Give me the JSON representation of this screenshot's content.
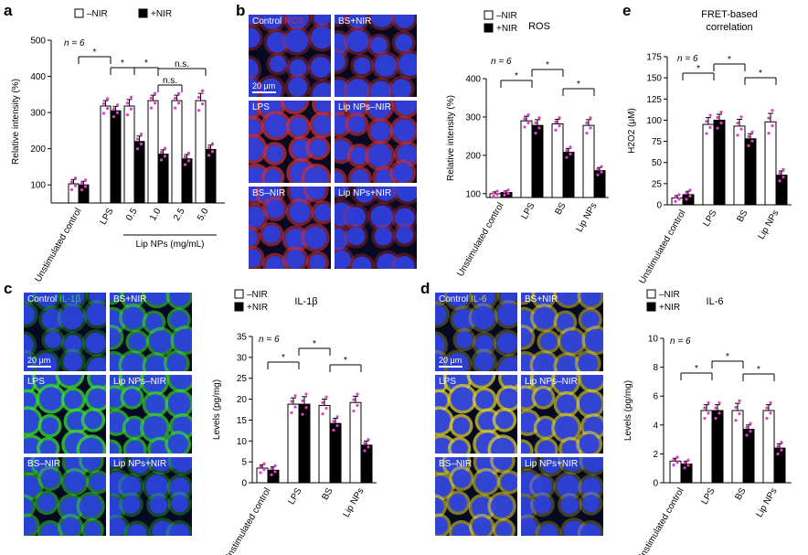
{
  "panel_letters": {
    "a": "a",
    "b": "b",
    "c": "c",
    "d": "d",
    "e": "e"
  },
  "colors": {
    "open": "#ffffff",
    "filled": "#000000",
    "dots": "#e040c8",
    "dapi": "#2a3fe0",
    "ros": "#c8303a",
    "il1b": "#3ad43a",
    "il6": "#d8cc3a"
  },
  "micro_b": {
    "tiles": [
      {
        "label": "Control",
        "stain": "ROS"
      },
      {
        "label": "BS+NIR",
        "stain": ""
      },
      {
        "label": "LPS",
        "stain": ""
      },
      {
        "label": "Lip NPs–NIR",
        "stain": ""
      },
      {
        "label": "BS–NIR",
        "stain": ""
      },
      {
        "label": "Lip NPs+NIR",
        "stain": ""
      }
    ],
    "scale": "20 μm"
  },
  "micro_c": {
    "tiles": [
      {
        "label": "Control",
        "stain": "IL-1β"
      },
      {
        "label": "BS+NIR",
        "stain": ""
      },
      {
        "label": "LPS",
        "stain": ""
      },
      {
        "label": "Lip NPs–NIR",
        "stain": ""
      },
      {
        "label": "BS–NIR",
        "stain": ""
      },
      {
        "label": "Lip NPs+NIR",
        "stain": ""
      }
    ],
    "scale": "20 μm"
  },
  "micro_d": {
    "tiles": [
      {
        "label": "Control",
        "stain": "IL-6"
      },
      {
        "label": "BS+NIR",
        "stain": ""
      },
      {
        "label": "LPS",
        "stain": ""
      },
      {
        "label": "Lip NPs–NIR",
        "stain": ""
      },
      {
        "label": "BS–NIR",
        "stain": ""
      },
      {
        "label": "Lip NPs+NIR",
        "stain": ""
      }
    ],
    "scale": "20 μm"
  },
  "chart_data": [
    {
      "panel": "a",
      "type": "bar",
      "title": "",
      "ylabel": "Relative intensity (%)",
      "xlabel": "Lip NPs (mg/mL)",
      "categories": [
        "Unstimulated control",
        "LPS",
        "0.5",
        "1.0",
        "2.5",
        "5.0"
      ],
      "ylim": [
        50,
        500
      ],
      "yticks": [
        100,
        200,
        300,
        400,
        500
      ],
      "ytick_labels": [
        "100",
        "200",
        "300",
        "400",
        "500"
      ],
      "series": [
        {
          "name": "–NIR",
          "values": [
            103,
            318,
            318,
            333,
            333,
            333
          ],
          "errors": [
            12,
            15,
            18,
            15,
            15,
            20
          ]
        },
        {
          "name": "+NIR",
          "values": [
            100,
            305,
            220,
            185,
            172,
            198
          ],
          "errors": [
            10,
            12,
            15,
            12,
            12,
            12
          ]
        }
      ],
      "n_label": "n = 6",
      "significance": [
        "*",
        "*",
        "*",
        "n.s.",
        "n.s."
      ]
    },
    {
      "panel": "b",
      "type": "bar",
      "title": "ROS",
      "ylabel": "Relative intensity (%)",
      "xlabel": "",
      "categories": [
        "Unstimulated control",
        "LPS",
        "BS",
        "Lip NPs"
      ],
      "ylim": [
        90,
        400
      ],
      "yticks": [
        100,
        200,
        300,
        400
      ],
      "ytick_labels": [
        "100",
        "200",
        "300",
        "400"
      ],
      "series": [
        {
          "name": "–NIR",
          "values": [
            100,
            290,
            282,
            278
          ],
          "errors": [
            5,
            12,
            12,
            15
          ]
        },
        {
          "name": "+NIR",
          "values": [
            103,
            278,
            208,
            160
          ],
          "errors": [
            5,
            15,
            10,
            8
          ]
        }
      ],
      "n_label": "n = 6",
      "significance": [
        "*",
        "*",
        "*"
      ]
    },
    {
      "panel": "e",
      "type": "bar",
      "title": "FRET-based correlation",
      "ylabel": "H2O2 (μM)",
      "xlabel": "",
      "categories": [
        "Unstimulated control",
        "LPS",
        "BS",
        "Lip NPs"
      ],
      "ylim": [
        0,
        175
      ],
      "yticks": [
        0,
        25,
        50,
        75,
        100,
        125,
        150,
        175
      ],
      "ytick_labels": [
        "0",
        "25",
        "50",
        "75",
        "100",
        "125",
        "150",
        "175"
      ],
      "series": [
        {
          "name": "–NIR",
          "values": [
            8,
            95,
            93,
            98
          ],
          "errors": [
            3,
            8,
            8,
            10
          ]
        },
        {
          "name": "+NIR",
          "values": [
            12,
            100,
            78,
            35
          ],
          "errors": [
            4,
            7,
            6,
            5
          ]
        }
      ],
      "n_label": "n = 6",
      "significance": [
        "*",
        "*",
        "*"
      ]
    },
    {
      "panel": "c",
      "type": "bar",
      "title": "IL-1β",
      "ylabel": "Levels (pg/mg)",
      "xlabel": "",
      "categories": [
        "Unstimulated control",
        "LPS",
        "BS",
        "Lip NPs"
      ],
      "ylim": [
        0,
        35
      ],
      "yticks": [
        0,
        5,
        10,
        15,
        20,
        25,
        30,
        35
      ],
      "ytick_labels": [
        "0",
        "5",
        "10",
        "15",
        "20",
        "25",
        "30",
        "35"
      ],
      "series": [
        {
          "name": "–NIR",
          "values": [
            3.5,
            18.8,
            18.5,
            19.2
          ],
          "errors": [
            0.8,
            1.5,
            1.5,
            1.5
          ]
        },
        {
          "name": "+NIR",
          "values": [
            3.0,
            18.8,
            14.2,
            9.0
          ],
          "errors": [
            0.8,
            1.8,
            1.2,
            1.0
          ]
        }
      ],
      "n_label": "n = 6",
      "significance": [
        "*",
        "*",
        "*"
      ]
    },
    {
      "panel": "d",
      "type": "bar",
      "title": "IL-6",
      "ylabel": "Levels (pg/mg)",
      "xlabel": "",
      "categories": [
        "Unstimulated control",
        "LPS",
        "BS",
        "Lip NPs"
      ],
      "ylim": [
        0,
        10
      ],
      "yticks": [
        0,
        2,
        4,
        6,
        8,
        10
      ],
      "ytick_labels": [
        "0",
        "2",
        "4",
        "6",
        "8",
        "10"
      ],
      "series": [
        {
          "name": "–NIR",
          "values": [
            1.5,
            5.0,
            5.0,
            5.0
          ],
          "errors": [
            0.2,
            0.4,
            0.5,
            0.4
          ]
        },
        {
          "name": "+NIR",
          "values": [
            1.3,
            5.0,
            3.7,
            2.4
          ],
          "errors": [
            0.2,
            0.4,
            0.3,
            0.3
          ]
        }
      ],
      "n_label": "n = 6",
      "significance": [
        "*",
        "*",
        "*"
      ]
    }
  ]
}
